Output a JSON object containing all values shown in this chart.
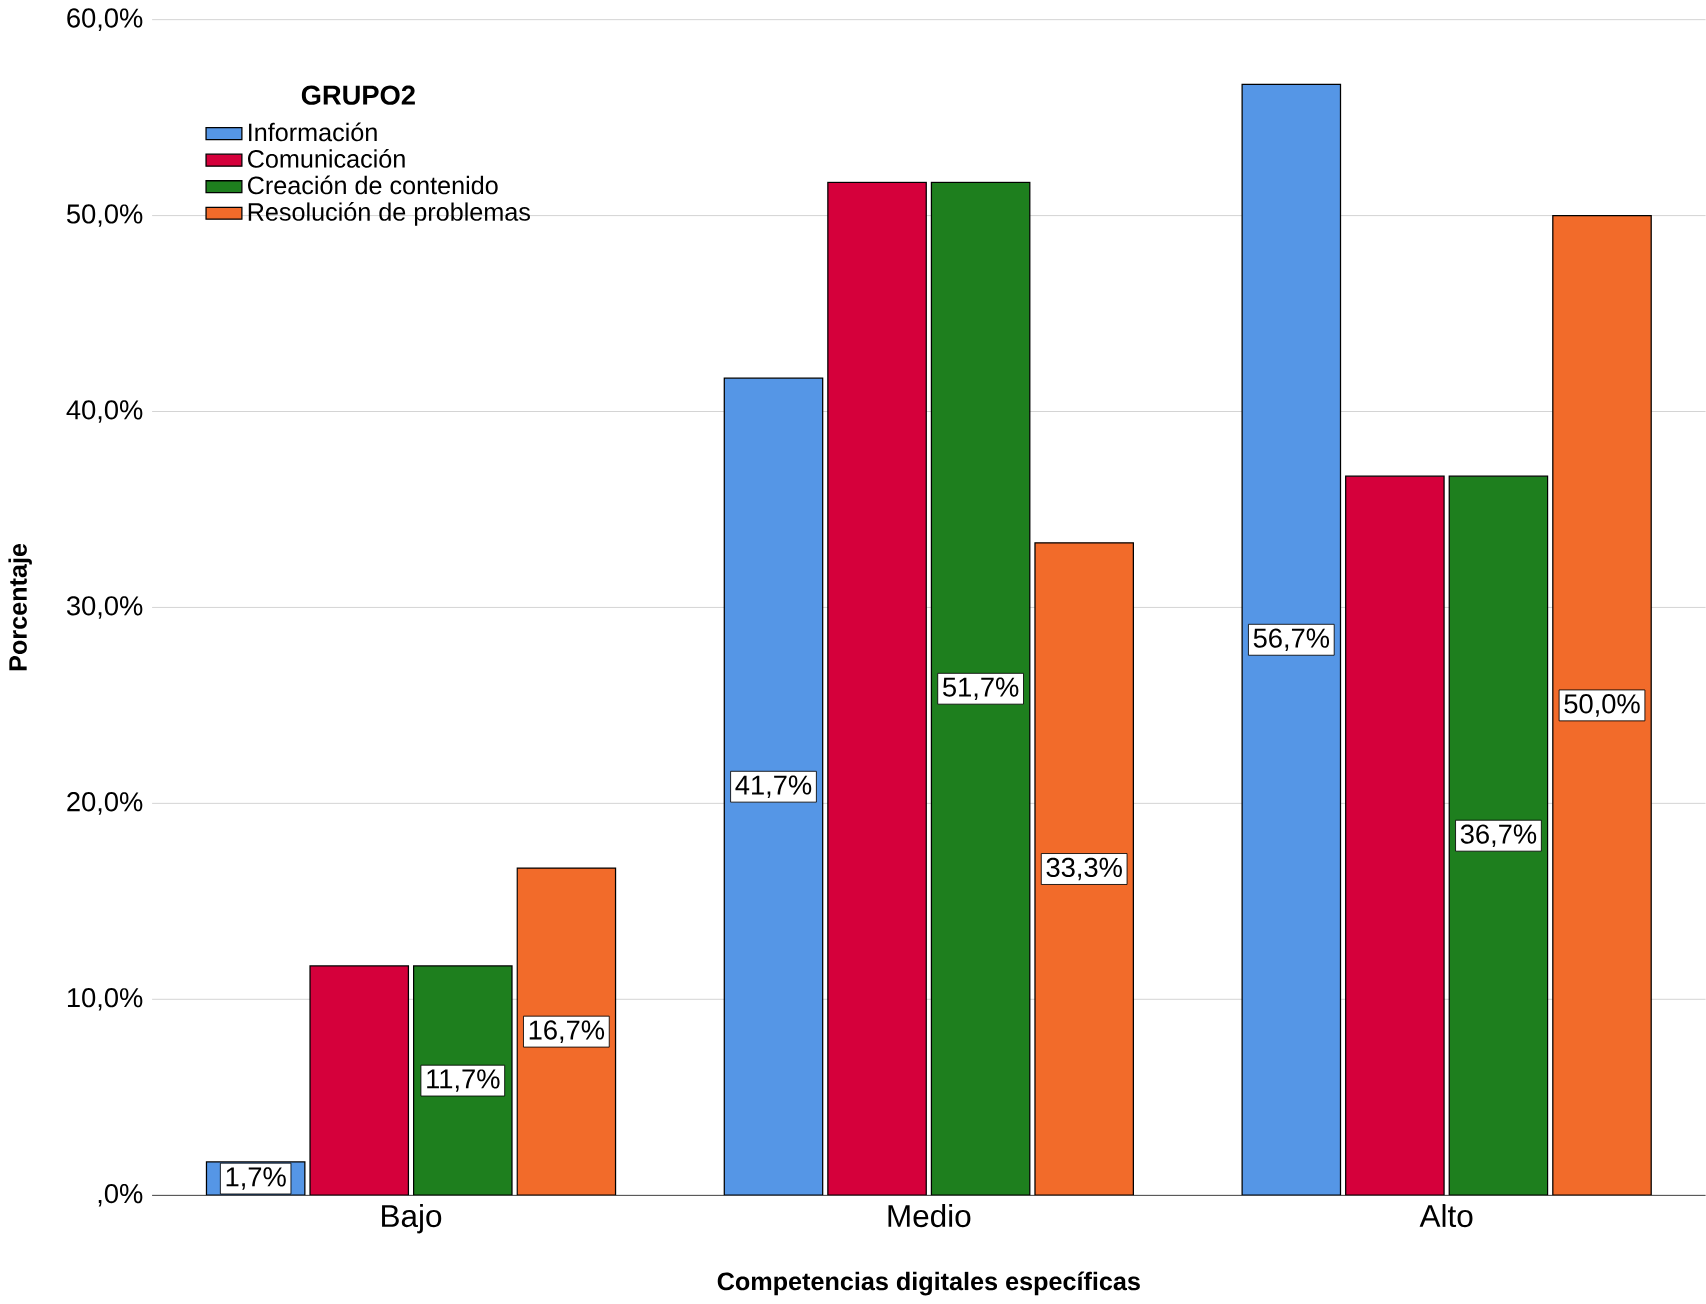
{
  "chart_data": {
    "type": "bar",
    "xlabel": "Competencias digitales específicas",
    "ylabel": "Porcentaje",
    "legend_title": "GRUPO2",
    "categories": [
      "Bajo",
      "Medio",
      "Alto"
    ],
    "series": [
      {
        "name": "Información",
        "color": "#5596e6",
        "values": [
          1.7,
          41.7,
          56.7
        ],
        "value_labels": [
          "1,7%",
          "41,7%",
          "56,7%"
        ]
      },
      {
        "name": "Comunicación",
        "color": "#d5003b",
        "values": [
          11.7,
          51.7,
          36.7
        ]
      },
      {
        "name": "Creación de contenido",
        "color": "#1e7f1e",
        "values": [
          11.7,
          51.7,
          36.7
        ],
        "value_labels": [
          "11,7%",
          "51,7%",
          "36,7%"
        ]
      },
      {
        "name": "Resolución de problemas",
        "color": "#f26b2a",
        "values": [
          16.7,
          33.3,
          50.0
        ],
        "value_labels": [
          "16,7%",
          "33,3%",
          "50,0%"
        ]
      }
    ],
    "ylim": [
      0,
      60
    ],
    "yticks": [
      {
        "value": 0,
        "label": ",0%"
      },
      {
        "value": 10,
        "label": "10,0%"
      },
      {
        "value": 20,
        "label": "20,0%"
      },
      {
        "value": 30,
        "label": "30,0%"
      },
      {
        "value": 40,
        "label": "40,0%"
      },
      {
        "value": 50,
        "label": "50,0%"
      },
      {
        "value": 60,
        "label": "60,0%"
      }
    ],
    "grid": "y",
    "legend": "top left"
  }
}
